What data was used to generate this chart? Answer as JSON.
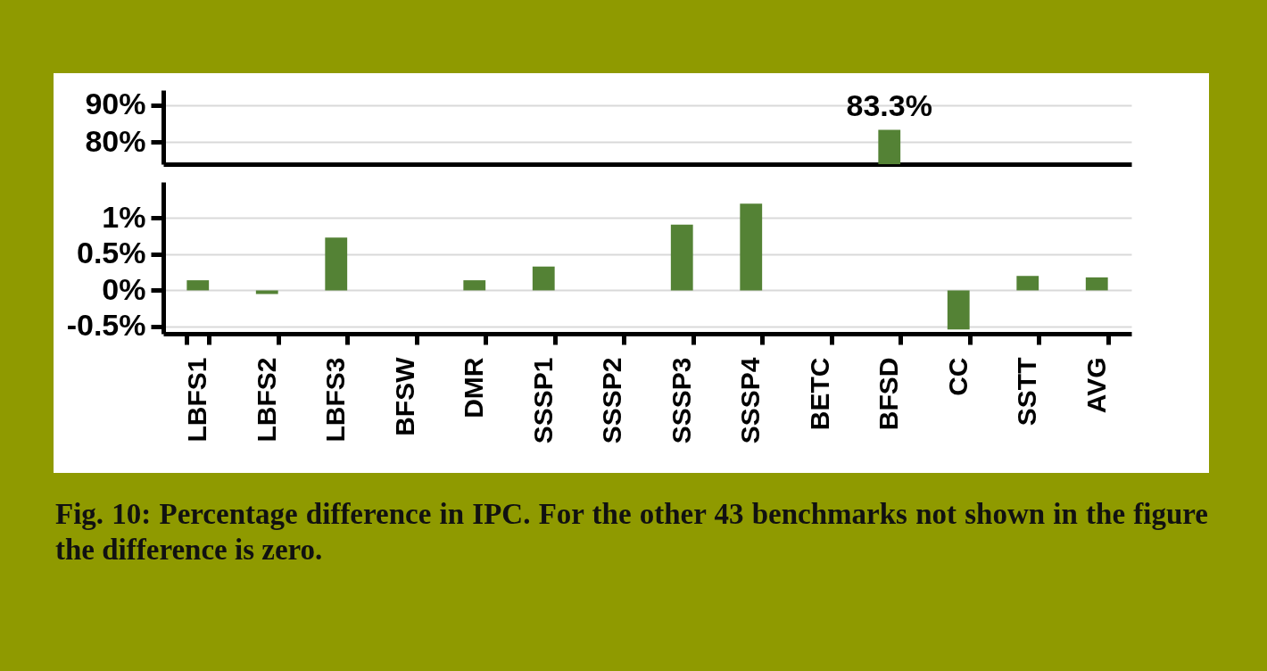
{
  "chart_data": [
    {
      "type": "bar",
      "categories": [
        null,
        null,
        null,
        null,
        null,
        null,
        null,
        null,
        null,
        null,
        null,
        null,
        null,
        null
      ],
      "values": [
        null,
        null,
        null,
        null,
        null,
        null,
        null,
        null,
        null,
        null,
        83.3,
        null,
        null,
        null
      ],
      "value_labels": [
        null,
        null,
        null,
        null,
        null,
        null,
        null,
        null,
        null,
        null,
        "83.3%",
        null,
        null,
        null
      ],
      "color": "#548235",
      "ylim": [
        74,
        94
      ],
      "yticks": [
        {
          "value": 80,
          "label": "80%"
        },
        {
          "value": 90,
          "label": "90%"
        }
      ],
      "grid": "y",
      "tick_labels": "y"
    },
    {
      "type": "bar",
      "categories": [
        "LBFS1",
        "LBFS2",
        "LBFS3",
        "BFSW",
        "DMR",
        "SSSP1",
        "SSSP2",
        "SSSP3",
        "SSSP4",
        "BETC",
        "BFSD",
        "CC",
        "SSTT",
        "AVG"
      ],
      "values": [
        0.14,
        -0.05,
        0.73,
        0,
        0.14,
        0.33,
        0,
        0.91,
        1.2,
        0,
        null,
        -0.54,
        0.2,
        0.18
      ],
      "color": "#548235",
      "ylim": [
        -0.6,
        1.5
      ],
      "yticks": [
        {
          "value": -0.5,
          "label": "-0.5%"
        },
        {
          "value": 0,
          "label": "0%"
        },
        {
          "value": 0.5,
          "label": "0.5%"
        },
        {
          "value": 1,
          "label": "1%"
        }
      ],
      "grid": "y",
      "annotations": [
        "Fig. 10: Percentage difference in IPC. For the other 43 benchmarks not shown in the figure the difference is zero."
      ]
    }
  ]
}
